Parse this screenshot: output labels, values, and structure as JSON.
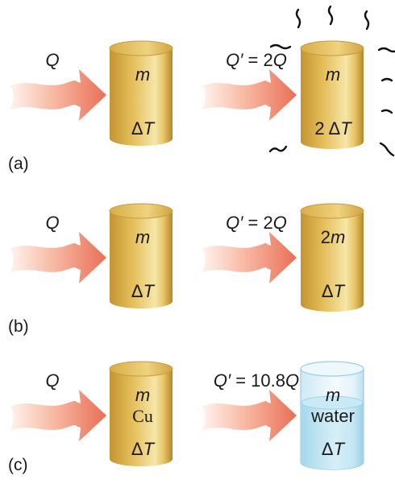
{
  "panels": [
    {
      "letter": "(a)",
      "left": {
        "heat": "Q",
        "lines": [
          {
            "main": "m"
          },
          {
            "pre": "Δ",
            "main": "T"
          }
        ]
      },
      "right": {
        "heat_sym": "Q′",
        "heat_eq": " = 2",
        "heat_var": "Q",
        "lines": [
          {
            "main": "m"
          },
          {
            "pre": "2 Δ",
            "main": "T"
          }
        ]
      }
    },
    {
      "letter": "(b)",
      "left": {
        "heat": "Q",
        "lines": [
          {
            "main": "m"
          },
          {
            "pre": "Δ",
            "main": "T"
          }
        ]
      },
      "right": {
        "heat_sym": "Q′",
        "heat_eq": " = 2",
        "heat_var": "Q",
        "lines": [
          {
            "pre": "2",
            "main": "m"
          },
          {
            "pre": "Δ",
            "main": "T"
          }
        ]
      }
    },
    {
      "letter": "(c)",
      "left": {
        "heat": "Q",
        "material": "Cu",
        "lines": [
          {
            "main": "m"
          },
          {
            "pre": "Δ",
            "main": "T"
          }
        ]
      },
      "right": {
        "heat_sym": "Q′",
        "heat_eq": " = 10.8",
        "heat_var": "Q",
        "material": "water",
        "lines": [
          {
            "main": "m"
          },
          {
            "pre": "Δ",
            "main": "T"
          }
        ]
      }
    }
  ],
  "colors": {
    "metal": "#e0b64e",
    "metal_dark": "#b6882a",
    "metal_light": "#f7e7a6",
    "water_glass": "#dff3fa",
    "water": "#b9e3f2",
    "arrow_dark": "#e87a62",
    "arrow_light": "#fde7de"
  }
}
